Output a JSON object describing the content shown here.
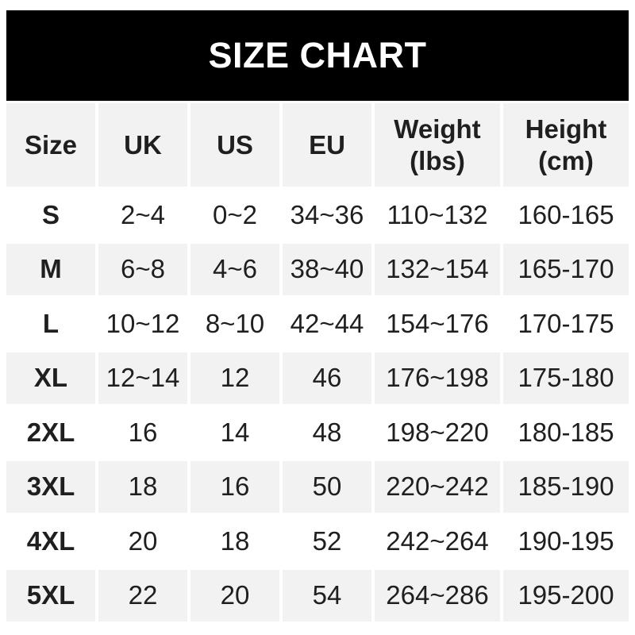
{
  "colors": {
    "title_bar_bg": "#000000",
    "title_text": "#ffffff",
    "row_alt_bg": "#f2f2f2",
    "text": "#1f1f1f"
  },
  "chart_data": {
    "type": "table",
    "title": "SIZE CHART",
    "columns": [
      "Size",
      "UK",
      "US",
      "EU",
      "Weight\n(lbs)",
      "Height\n(cm)"
    ],
    "rows": [
      [
        "S",
        "2~4",
        "0~2",
        "34~36",
        "110~132",
        "160-165"
      ],
      [
        "M",
        "6~8",
        "4~6",
        "38~40",
        "132~154",
        "165-170"
      ],
      [
        "L",
        "10~12",
        "8~10",
        "42~44",
        "154~176",
        "170-175"
      ],
      [
        "XL",
        "12~14",
        "12",
        "46",
        "176~198",
        "175-180"
      ],
      [
        "2XL",
        "16",
        "14",
        "48",
        "198~220",
        "180-185"
      ],
      [
        "3XL",
        "18",
        "16",
        "50",
        "220~242",
        "185-190"
      ],
      [
        "4XL",
        "20",
        "18",
        "52",
        "242~264",
        "190-195"
      ],
      [
        "5XL",
        "22",
        "20",
        "54",
        "264~286",
        "195-200"
      ]
    ],
    "layout": {
      "alternating_rows": true,
      "gray_rows": [
        "header",
        "M",
        "XL",
        "3XL",
        "5XL"
      ],
      "weight_range_separator": "~",
      "height_range_separator": "-"
    }
  }
}
